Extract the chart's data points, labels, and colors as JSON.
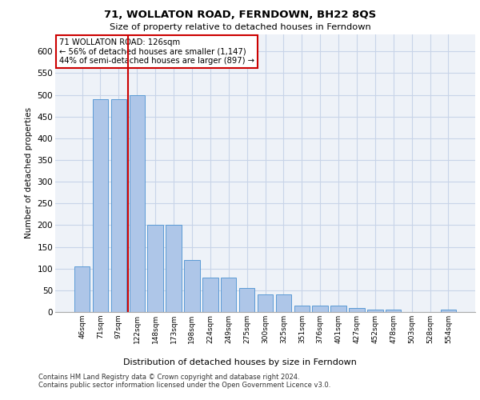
{
  "title1": "71, WOLLATON ROAD, FERNDOWN, BH22 8QS",
  "title2": "Size of property relative to detached houses in Ferndown",
  "xlabel": "Distribution of detached houses by size in Ferndown",
  "ylabel": "Number of detached properties",
  "footnote1": "Contains HM Land Registry data © Crown copyright and database right 2024.",
  "footnote2": "Contains public sector information licensed under the Open Government Licence v3.0.",
  "categories": [
    "46sqm",
    "71sqm",
    "97sqm",
    "122sqm",
    "148sqm",
    "173sqm",
    "198sqm",
    "224sqm",
    "249sqm",
    "275sqm",
    "300sqm",
    "325sqm",
    "351sqm",
    "376sqm",
    "401sqm",
    "427sqm",
    "452sqm",
    "478sqm",
    "503sqm",
    "528sqm",
    "554sqm"
  ],
  "values": [
    105,
    490,
    490,
    500,
    200,
    200,
    120,
    80,
    80,
    55,
    40,
    40,
    15,
    15,
    15,
    10,
    5,
    5,
    0,
    0,
    5
  ],
  "bar_color": "#aec6e8",
  "bar_edge_color": "#5b9bd5",
  "red_line_x": 2.5,
  "annotation_text": "71 WOLLATON ROAD: 126sqm\n← 56% of detached houses are smaller (1,147)\n44% of semi-detached houses are larger (897) →",
  "annotation_box_color": "#ffffff",
  "annotation_box_edge_color": "#cc0000",
  "ylim": [
    0,
    640
  ],
  "yticks": [
    0,
    50,
    100,
    150,
    200,
    250,
    300,
    350,
    400,
    450,
    500,
    550,
    600
  ],
  "grid_color": "#c8d4e8",
  "background_color": "#eef2f8"
}
